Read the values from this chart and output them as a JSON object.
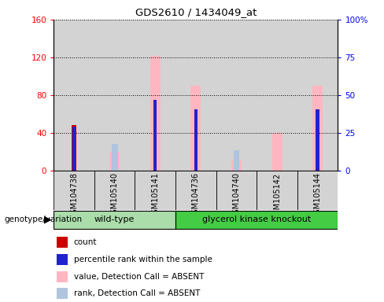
{
  "title": "GDS2610 / 1434049_at",
  "samples": [
    "GSM104738",
    "GSM105140",
    "GSM105141",
    "GSM104736",
    "GSM104740",
    "GSM105142",
    "GSM105144"
  ],
  "count_values": [
    48,
    0,
    0,
    0,
    0,
    0,
    0
  ],
  "rank_values": [
    47,
    0,
    75,
    65,
    0,
    0,
    65
  ],
  "absent_values": [
    0,
    20,
    122,
    90,
    12,
    40,
    90
  ],
  "absent_rank": [
    0,
    28,
    0,
    0,
    22,
    0,
    0
  ],
  "ylim_left": [
    0,
    160
  ],
  "ylim_right": [
    0,
    100
  ],
  "left_ticks": [
    0,
    40,
    80,
    120,
    160
  ],
  "right_ticks": [
    0,
    25,
    50,
    75,
    100
  ],
  "group1_indices": [
    0,
    1,
    2
  ],
  "group2_indices": [
    3,
    4,
    5,
    6
  ],
  "group1_label": "wild-type",
  "group2_label": "glycerol kinase knockout",
  "group1_color": "#aaddaa",
  "group2_color": "#44cc44",
  "bar_bg_color": "#d3d3d3",
  "plot_bg_color": "#ffffff",
  "count_color": "#cc0000",
  "rank_color": "#2222cc",
  "absent_val_color": "#ffb6c1",
  "absent_rank_color": "#b0c4de",
  "legend_labels": [
    "count",
    "percentile rank within the sample",
    "value, Detection Call = ABSENT",
    "rank, Detection Call = ABSENT"
  ],
  "genotype_label": "genotype/variation"
}
